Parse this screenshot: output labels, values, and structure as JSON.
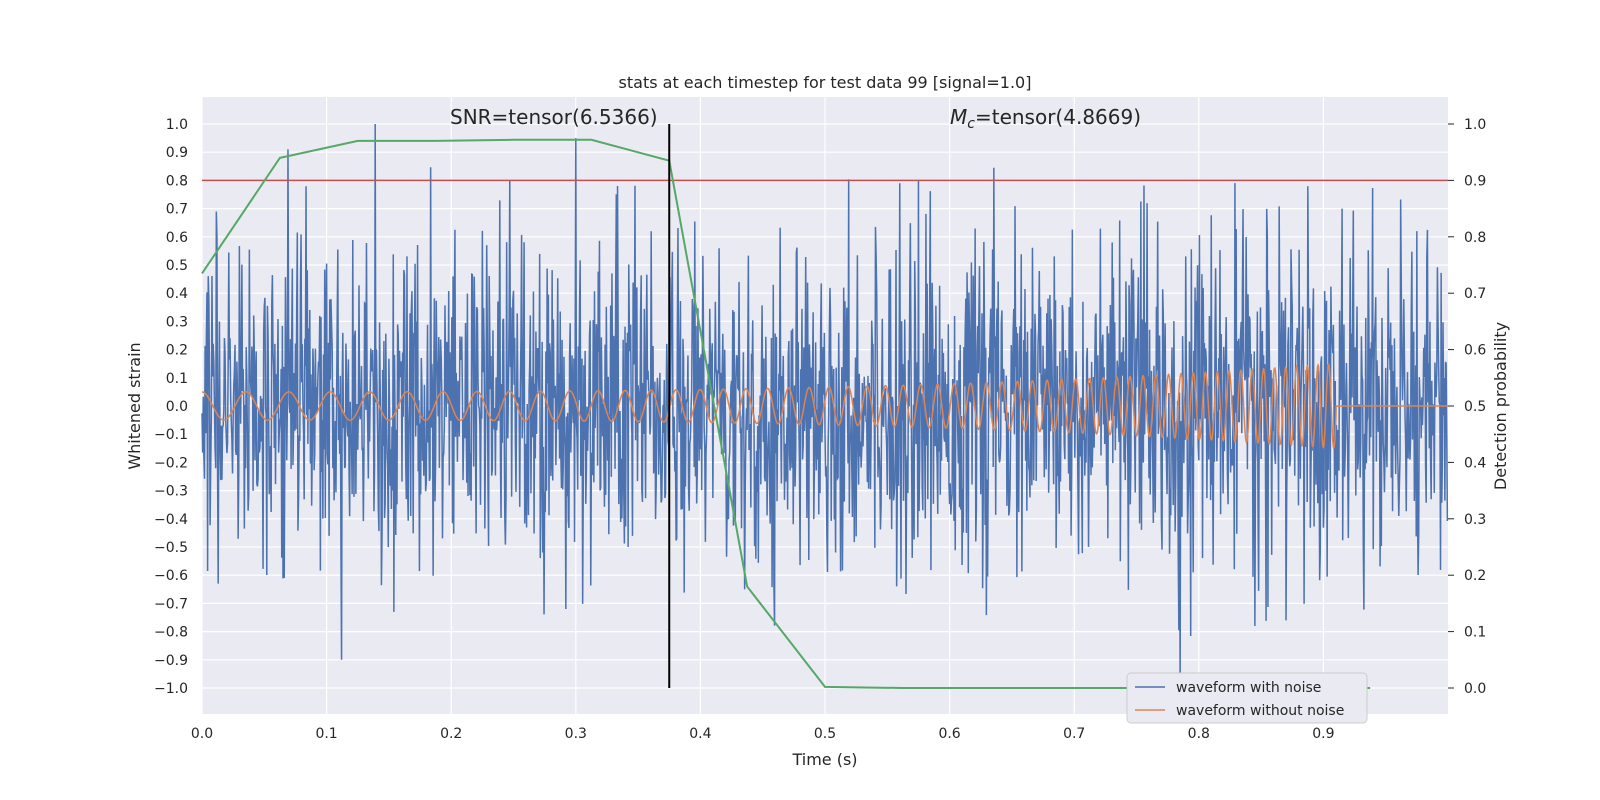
{
  "chart_data": {
    "type": "line",
    "title": "stats at each timestep for test data 99 [signal=1.0]",
    "xlabel": "Time (s)",
    "ylabel": "Whitened strain",
    "y2label": "Detection probability",
    "xlim": [
      0.0,
      1.0
    ],
    "ylim": [
      -1.1,
      1.1
    ],
    "y2lim": [
      -0.05,
      1.05
    ],
    "xticks": [
      "0.0",
      "0.1",
      "0.2",
      "0.3",
      "0.4",
      "0.5",
      "0.6",
      "0.7",
      "0.8",
      "0.9"
    ],
    "yticks": [
      "1.0",
      "0.9",
      "0.8",
      "0.7",
      "0.6",
      "0.5",
      "0.4",
      "0.3",
      "0.2",
      "0.1",
      "0.0",
      "−0.1",
      "−0.2",
      "−0.3",
      "−0.4",
      "−0.5",
      "−0.6",
      "−0.7",
      "−0.8",
      "−0.9",
      "−1.0"
    ],
    "y2ticks": [
      "1.0",
      "0.9",
      "0.8",
      "0.7",
      "0.6",
      "0.5",
      "0.4",
      "0.3",
      "0.2",
      "0.1",
      "0.0"
    ],
    "grid": true,
    "legend_position": "bottom-right",
    "annotations": {
      "snr": "SNR=tensor(6.5366)",
      "mc_symbol": "M",
      "mc_subscript": "c",
      "mc_rest": "=tensor(4.8669)"
    },
    "threshold_line": {
      "y2": 0.9,
      "color": "#c44e52"
    },
    "marker_line": {
      "x": 0.375,
      "color": "#000000"
    },
    "series": [
      {
        "name": "waveform with noise",
        "color": "#4c72b0",
        "axis": "left",
        "description_samples": 2000,
        "seed": 99,
        "sigma": 0.28,
        "spikes": [
          {
            "x": 0.069,
            "y": 0.91
          },
          {
            "x": 0.139,
            "y": 1.0
          },
          {
            "x": 0.247,
            "y": 0.8
          },
          {
            "x": 0.112,
            "y": -0.9
          },
          {
            "x": 0.154,
            "y": -0.73
          },
          {
            "x": 0.56,
            "y": 0.79
          },
          {
            "x": 0.785,
            "y": -1.0
          },
          {
            "x": 0.292,
            "y": -0.72
          },
          {
            "x": 0.013,
            "y": -0.63
          },
          {
            "x": 0.845,
            "y": -0.78
          },
          {
            "x": 0.575,
            "y": 0.8
          },
          {
            "x": 0.915,
            "y": 0.7
          },
          {
            "x": 0.975,
            "y": 0.62
          },
          {
            "x": 0.87,
            "y": -0.76
          },
          {
            "x": 0.066,
            "y": -0.61
          }
        ]
      },
      {
        "name": "waveform without noise",
        "color": "#dd8452",
        "axis": "left",
        "chirp": {
          "f0": 28,
          "f1": 120,
          "a0": 0.05,
          "a1": 0.15,
          "t_end": 0.91
        }
      },
      {
        "name": "detection probability",
        "color": "#55a868",
        "axis": "right",
        "x": [
          0.0,
          0.0625,
          0.125,
          0.1875,
          0.25,
          0.3125,
          0.375,
          0.4375,
          0.5,
          0.5625,
          0.625,
          0.6875,
          0.75,
          0.8125,
          0.875,
          0.9375
        ],
        "values": [
          0.735,
          0.94,
          0.97,
          0.97,
          0.972,
          0.972,
          0.935,
          0.18,
          0.002,
          0.0,
          0.0,
          0.0,
          0.0,
          0.0,
          0.0,
          0.0
        ]
      }
    ]
  }
}
